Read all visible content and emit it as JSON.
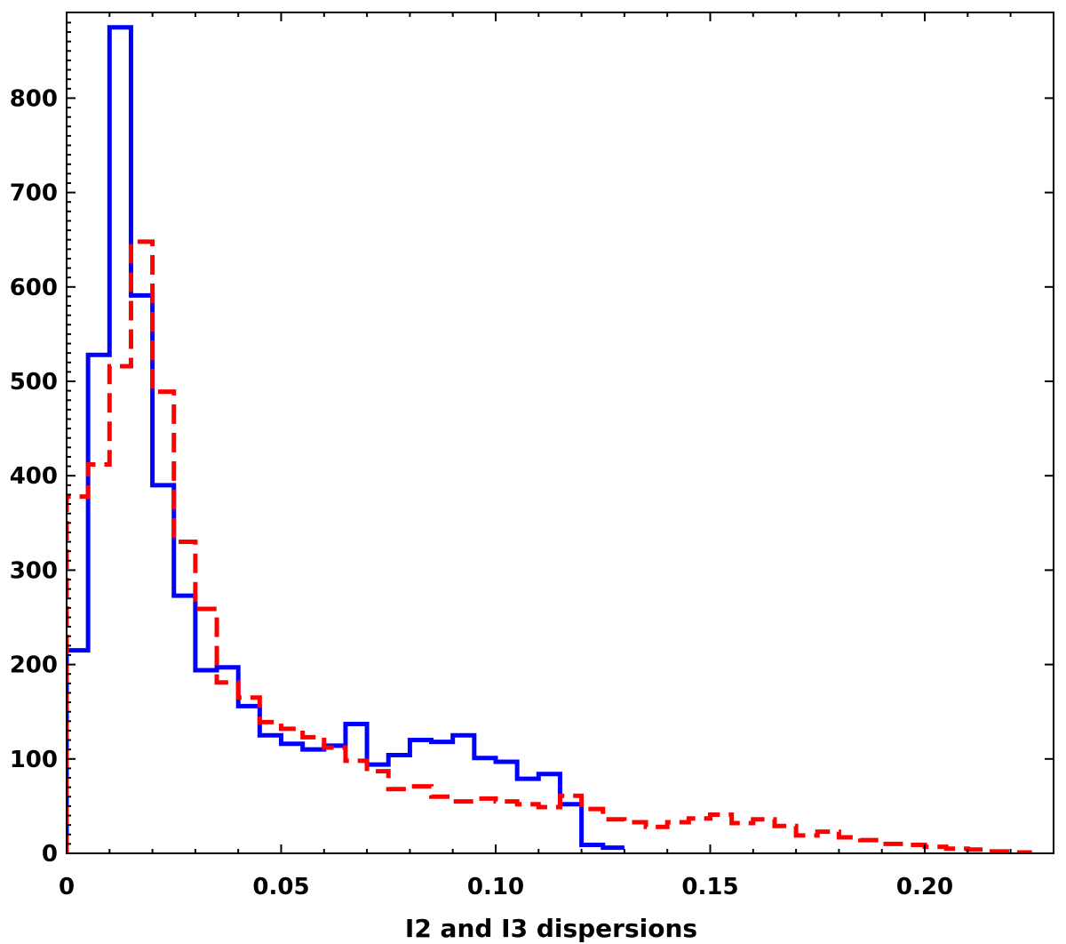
{
  "chart_data": {
    "type": "histogram",
    "title": "",
    "xlabel": "I2 and I3 dispersions",
    "ylabel": "",
    "xlim": [
      0,
      0.23
    ],
    "ylim": [
      0,
      890
    ],
    "xticks": [
      {
        "value": 0,
        "label": "0"
      },
      {
        "value": 0.05,
        "label": "0.05"
      },
      {
        "value": 0.1,
        "label": "0.10"
      },
      {
        "value": 0.15,
        "label": "0.15"
      },
      {
        "value": 0.2,
        "label": "0.20"
      }
    ],
    "yticks": [
      {
        "value": 0,
        "label": "0"
      },
      {
        "value": 100,
        "label": "100"
      },
      {
        "value": 200,
        "label": "200"
      },
      {
        "value": 300,
        "label": "300"
      },
      {
        "value": 400,
        "label": "400"
      },
      {
        "value": 500,
        "label": "500"
      },
      {
        "value": 600,
        "label": "600"
      },
      {
        "value": 700,
        "label": "700"
      },
      {
        "value": 800,
        "label": "800"
      }
    ],
    "bin_width": 0.005,
    "legend": "none",
    "grid": false,
    "series": [
      {
        "style": "solid",
        "color": "#0000ff",
        "bin_start": 0,
        "values": [
          215,
          528,
          875,
          591,
          390,
          273,
          194,
          197,
          156,
          125,
          116,
          110,
          114,
          137,
          94,
          104,
          120,
          118,
          125,
          101,
          97,
          79,
          84,
          52,
          9,
          6
        ]
      },
      {
        "style": "dashed",
        "color": "#ff0000",
        "bin_start": 0,
        "values": [
          378,
          412,
          516,
          648,
          489,
          330,
          259,
          181,
          165,
          139,
          132,
          123,
          112,
          98,
          87,
          68,
          71,
          60,
          55,
          58,
          55,
          52,
          49,
          61,
          47,
          36,
          33,
          28,
          33,
          37,
          41,
          32,
          36,
          29,
          19,
          23,
          17,
          14,
          10,
          9,
          7,
          5,
          4,
          2,
          1
        ]
      }
    ]
  }
}
